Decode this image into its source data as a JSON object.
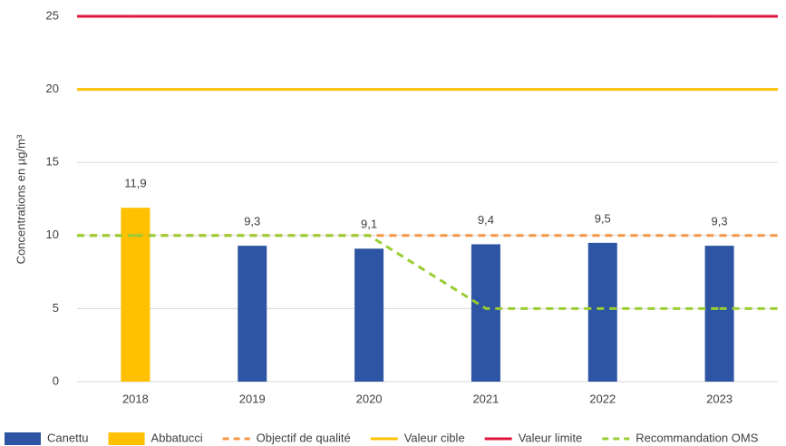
{
  "chart_data": {
    "type": "bar",
    "y_label": "Concentrations en µg/m³",
    "categories": [
      "2018",
      "2019",
      "2020",
      "2021",
      "2022",
      "2023"
    ],
    "ylim": [
      0,
      25
    ],
    "yticks": [
      0,
      5,
      10,
      15,
      20,
      25
    ],
    "grid": true,
    "series": [
      {
        "name": "Canettu",
        "kind": "bar",
        "color": "#2e55a3",
        "values": [
          null,
          9.3,
          9.1,
          9.4,
          9.5,
          9.3
        ],
        "value_labels": [
          null,
          "9,3",
          "9,1",
          "9,4",
          "9,5",
          "9,3"
        ]
      },
      {
        "name": "Abbatucci",
        "kind": "bar",
        "color": "#ffc000",
        "values": [
          11.9,
          null,
          null,
          null,
          null,
          null
        ],
        "value_labels": [
          "11,9",
          null,
          null,
          null,
          null,
          null
        ]
      },
      {
        "name": "Objectif de qualité",
        "kind": "line",
        "dashed": true,
        "color": "#f79646",
        "values": [
          10,
          10,
          10,
          10,
          10,
          10
        ]
      },
      {
        "name": "Valeur cible",
        "kind": "line",
        "dashed": false,
        "color": "#ffc000",
        "values": [
          20,
          20,
          20,
          20,
          20,
          20
        ]
      },
      {
        "name": "Valeur limite",
        "kind": "line",
        "dashed": false,
        "color": "#e0143c",
        "values": [
          25,
          25,
          25,
          25,
          25,
          25
        ]
      },
      {
        "name": "Recommandation OMS",
        "kind": "line",
        "dashed": true,
        "color": "#9acd32",
        "values": [
          10,
          10,
          10,
          5,
          5,
          5
        ]
      }
    ]
  }
}
